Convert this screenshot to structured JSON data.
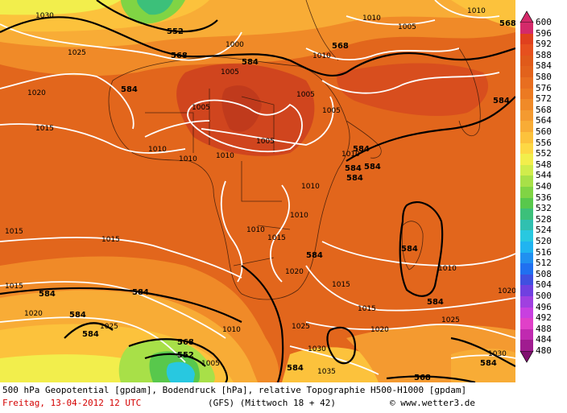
{
  "footer": {
    "description": "500 hPa Geopotential [gpdam], Bodendruck [hPa], relative Topographie H500-H1000 [gpdam]",
    "date": "Freitag, 13-04-2012  12 UTC",
    "model": "(GFS)  (Mittwoch 18 + 42)",
    "copyright": "© www.wetter3.de"
  },
  "legend": {
    "levels": [
      "600",
      "596",
      "592",
      "588",
      "584",
      "580",
      "576",
      "572",
      "568",
      "564",
      "560",
      "556",
      "552",
      "548",
      "544",
      "540",
      "536",
      "532",
      "528",
      "524",
      "520",
      "516",
      "512",
      "508",
      "504",
      "500",
      "496",
      "492",
      "488",
      "484",
      "480"
    ],
    "colors": [
      "#d42a6a",
      "#e0401e",
      "#e6501e",
      "#e05a1a",
      "#e2621c",
      "#e86e20",
      "#ec7a22",
      "#f08a28",
      "#f49a30",
      "#f8ac36",
      "#fcc23c",
      "#fdd844",
      "#f2ee4c",
      "#d0ec4c",
      "#a8e048",
      "#80d444",
      "#58c84c",
      "#3cc07a",
      "#30c0b0",
      "#28c8e0",
      "#20b4f0",
      "#2090f0",
      "#2070f0",
      "#4050e0",
      "#7040e0",
      "#a040e0",
      "#c840e0",
      "#e040c8",
      "#c02ab0",
      "#a01c90",
      "#801070"
    ]
  },
  "map": {
    "pressure_labels": [
      "1030",
      "1025",
      "1020",
      "1015",
      "1010",
      "1005",
      "1000",
      "1005",
      "1010",
      "1015",
      "1020",
      "1025",
      "1030",
      "1035",
      "1010",
      "1005",
      "1015",
      "1010",
      "1010",
      "1010",
      "1015",
      "1010",
      "1020",
      "1015",
      "1020",
      "1025",
      "1030",
      "1010",
      "1010",
      "1005",
      "1010",
      "1005",
      "1010",
      "1015",
      "1020",
      "1025",
      "1030",
      "1035",
      "1010",
      "1015",
      "1020",
      "1025",
      "1020"
    ],
    "geopotential_labels": [
      "552",
      "568",
      "584",
      "584",
      "584",
      "584",
      "584",
      "584",
      "584",
      "584",
      "584",
      "584",
      "584",
      "584",
      "568",
      "552",
      "568",
      "584",
      "584",
      "568"
    ]
  }
}
